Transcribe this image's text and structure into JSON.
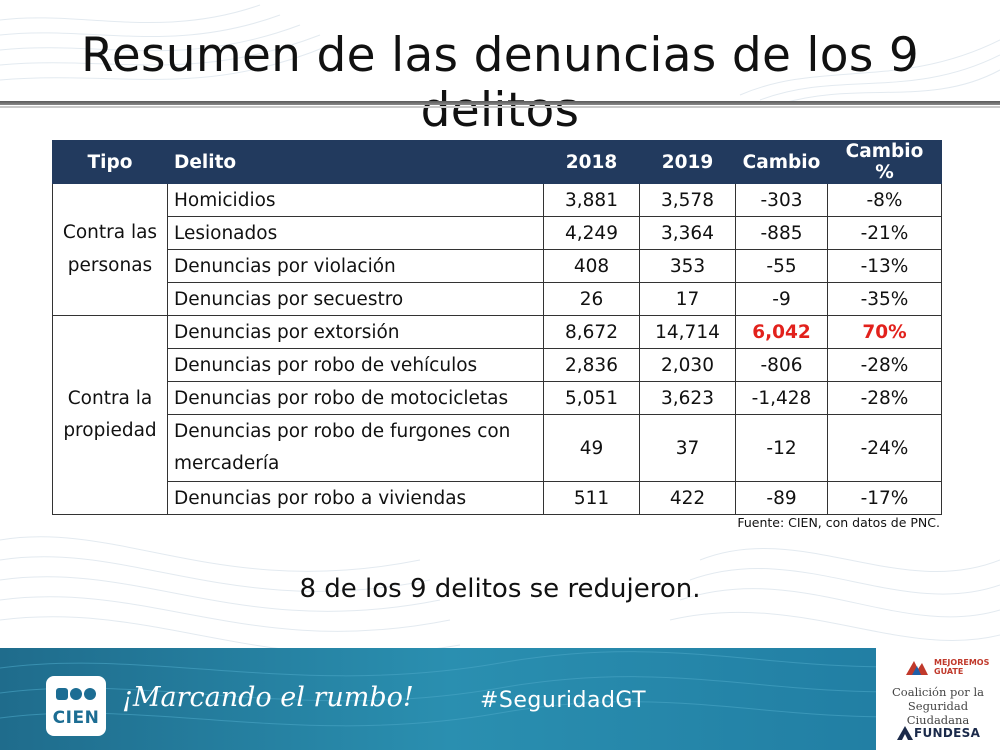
{
  "title": "Resumen de las denuncias de los 9 delitos",
  "table": {
    "headers": [
      "Tipo",
      "Delito",
      "2018",
      "2019",
      "Cambio",
      "Cambio %"
    ],
    "groups": [
      {
        "tipo": "Contra las personas",
        "rows": [
          {
            "delito": "Homicidios",
            "y2018": "3,881",
            "y2019": "3,578",
            "cambio": "-303",
            "cambio_pct": "-8%"
          },
          {
            "delito": "Lesionados",
            "y2018": "4,249",
            "y2019": "3,364",
            "cambio": "-885",
            "cambio_pct": "-21%"
          },
          {
            "delito": "Denuncias por violación",
            "y2018": "408",
            "y2019": "353",
            "cambio": "-55",
            "cambio_pct": "-13%"
          },
          {
            "delito": "Denuncias por secuestro",
            "y2018": "26",
            "y2019": "17",
            "cambio": "-9",
            "cambio_pct": "-35%"
          }
        ]
      },
      {
        "tipo": "Contra la propiedad",
        "rows": [
          {
            "delito": "Denuncias por extorsión",
            "y2018": "8,672",
            "y2019": "14,714",
            "cambio": "6,042",
            "cambio_pct": "70%"
          },
          {
            "delito": "Denuncias por robo de vehículos",
            "y2018": "2,836",
            "y2019": "2,030",
            "cambio": "-806",
            "cambio_pct": "-28%"
          },
          {
            "delito": "Denuncias por robo de motocicletas",
            "y2018": "5,051",
            "y2019": "3,623",
            "cambio": "-1,428",
            "cambio_pct": "-28%"
          },
          {
            "delito": "Denuncias por robo de furgones con mercadería",
            "y2018": "49",
            "y2019": "37",
            "cambio": "-12",
            "cambio_pct": "-24%"
          },
          {
            "delito": "Denuncias por robo a viviendas",
            "y2018": "511",
            "y2019": "422",
            "cambio": "-89",
            "cambio_pct": "-17%"
          }
        ]
      }
    ],
    "highlight_color": "#e2211c",
    "header_color": "#223a5e"
  },
  "source": "Fuente: CIEN, con datos de PNC.",
  "summary": "8 de los 9 delitos se redujeron.",
  "footer": {
    "logo_text": "CIEN",
    "tagline": "¡Marcando el rumbo!",
    "hashtag": "#SeguridadGT",
    "partner": {
      "mejoremos": "MEJOREMOS",
      "guate": "GUATE",
      "coalicion_line1": "Coalición por la",
      "coalicion_line2": "Seguridad Ciudadana",
      "fundesa": "FUNDESA"
    }
  }
}
